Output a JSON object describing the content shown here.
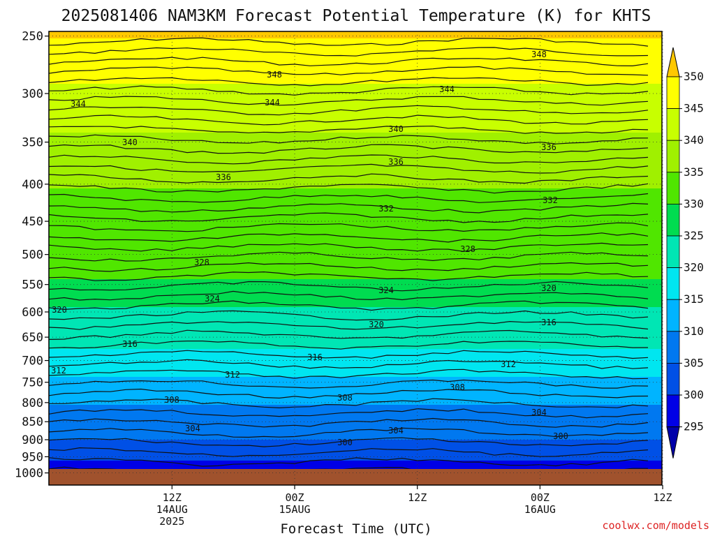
{
  "chart_data": {
    "type": "heatmap",
    "title": "2025081406 NAM3KM Forecast Potential Temperature (K) for KHTS",
    "xlabel": "Forecast Time (UTC)",
    "ylabel": "",
    "credit": "coolwx.com/models",
    "y_axis": {
      "scale": "pressure",
      "range": [
        1000,
        200
      ],
      "ticks": [
        "250",
        "300",
        "350",
        "400",
        "450",
        "500",
        "550",
        "600",
        "650",
        "700",
        "750",
        "800",
        "850",
        "900",
        "950",
        "1000"
      ]
    },
    "x_axis": {
      "range": [
        "2025-08-14 06Z",
        "2025-08-17 00Z"
      ],
      "ticks": [
        {
          "line1": "12Z",
          "line2": "14AUG",
          "line3": "2025"
        },
        {
          "line1": "00Z",
          "line2": "15AUG",
          "line3": ""
        },
        {
          "line1": "12Z",
          "line2": "",
          "line3": ""
        },
        {
          "line1": "00Z",
          "line2": "16AUG",
          "line3": ""
        },
        {
          "line1": "12Z",
          "line2": "",
          "line3": ""
        }
      ]
    },
    "colorbar": {
      "labels": [
        "350",
        "345",
        "340",
        "335",
        "330",
        "325",
        "320",
        "315",
        "310",
        "305",
        "300",
        "295"
      ],
      "colors": [
        "#ffc800",
        "#ffff00",
        "#c8ff00",
        "#a0f000",
        "#50e600",
        "#00dc50",
        "#00e6b4",
        "#00e6f0",
        "#00b4ff",
        "#0078f0",
        "#0050e6",
        "#0000e6",
        "#0000aa"
      ]
    },
    "contour_labels": [
      "348",
      "348",
      "344",
      "344",
      "344",
      "340",
      "340",
      "336",
      "336",
      "336",
      "332",
      "332",
      "328",
      "328",
      "324",
      "324",
      "320",
      "320",
      "320",
      "316",
      "316",
      "316",
      "312",
      "312",
      "312",
      "308",
      "308",
      "308",
      "304",
      "304",
      "304",
      "300",
      "300"
    ],
    "grid": true,
    "legend_position": "right"
  }
}
